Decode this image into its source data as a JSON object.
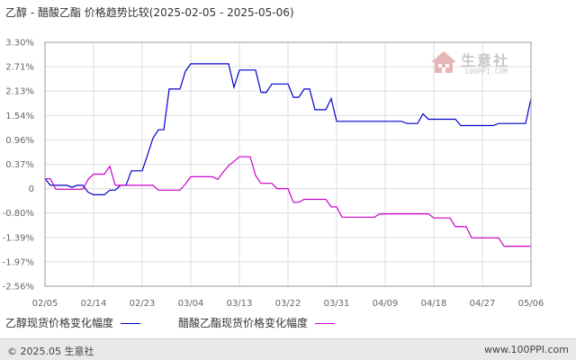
{
  "chart_data": {
    "type": "line",
    "title": "乙醇 - 醋酸乙酯 价格趋势比较(2025-02-05 - 2025-05-06)",
    "xlabel": "",
    "ylabel": "",
    "x_ticks": [
      "02/05",
      "02/14",
      "02/23",
      "03/04",
      "03/13",
      "03/22",
      "03/31",
      "04/09",
      "04/18",
      "04/27",
      "05/06"
    ],
    "y_ticks": [
      "3.30%",
      "2.71%",
      "2.13%",
      "1.54%",
      "0.96%",
      "0.37%",
      "0",
      "-0.80%",
      "-1.39%",
      "-1.97%",
      "-2.56%"
    ],
    "x_range": [
      0,
      90
    ],
    "ylim": [
      -2.56,
      3.3
    ],
    "grid": true,
    "legend_position": "bottom",
    "series": [
      {
        "name": "乙醇现货价格变化幅度",
        "color": "#0000cc",
        "points": [
          [
            0,
            0.15
          ],
          [
            1,
            0.05
          ],
          [
            2,
            0.05
          ],
          [
            3,
            0.05
          ],
          [
            4,
            0.05
          ],
          [
            5,
            0.02
          ],
          [
            6,
            0.05
          ],
          [
            7,
            0.05
          ],
          [
            8,
            -0.12
          ],
          [
            9,
            -0.2
          ],
          [
            10,
            -0.2
          ],
          [
            11,
            -0.2
          ],
          [
            12,
            -0.05
          ],
          [
            13,
            -0.05
          ],
          [
            14,
            0.05
          ],
          [
            15,
            0.05
          ],
          [
            16,
            0.27
          ],
          [
            17,
            0.27
          ],
          [
            18,
            0.27
          ],
          [
            19,
            0.6
          ],
          [
            20,
            1.0
          ],
          [
            21,
            1.2
          ],
          [
            22,
            1.2
          ],
          [
            23,
            2.18
          ],
          [
            24,
            2.18
          ],
          [
            25,
            2.18
          ],
          [
            26,
            2.6
          ],
          [
            27,
            2.78
          ],
          [
            28,
            2.78
          ],
          [
            29,
            2.78
          ],
          [
            30,
            2.78
          ],
          [
            31,
            2.78
          ],
          [
            32,
            2.78
          ],
          [
            33,
            2.78
          ],
          [
            34,
            2.78
          ],
          [
            35,
            2.22
          ],
          [
            36,
            2.63
          ],
          [
            37,
            2.63
          ],
          [
            38,
            2.63
          ],
          [
            39,
            2.63
          ],
          [
            40,
            2.1
          ],
          [
            41,
            2.1
          ],
          [
            42,
            2.3
          ],
          [
            43,
            2.3
          ],
          [
            44,
            2.3
          ],
          [
            45,
            2.3
          ],
          [
            46,
            1.98
          ],
          [
            47,
            1.98
          ],
          [
            48,
            2.18
          ],
          [
            49,
            2.18
          ],
          [
            50,
            1.68
          ],
          [
            51,
            1.68
          ],
          [
            52,
            1.68
          ],
          [
            53,
            1.95
          ],
          [
            54,
            1.4
          ],
          [
            55,
            1.4
          ],
          [
            56,
            1.4
          ],
          [
            57,
            1.4
          ],
          [
            58,
            1.4
          ],
          [
            59,
            1.4
          ],
          [
            60,
            1.4
          ],
          [
            61,
            1.4
          ],
          [
            62,
            1.4
          ],
          [
            63,
            1.4
          ],
          [
            64,
            1.4
          ],
          [
            65,
            1.4
          ],
          [
            66,
            1.4
          ],
          [
            67,
            1.35
          ],
          [
            68,
            1.35
          ],
          [
            69,
            1.35
          ],
          [
            70,
            1.58
          ],
          [
            71,
            1.45
          ],
          [
            72,
            1.45
          ],
          [
            73,
            1.45
          ],
          [
            74,
            1.45
          ],
          [
            75,
            1.45
          ],
          [
            76,
            1.45
          ],
          [
            77,
            1.3
          ],
          [
            78,
            1.3
          ],
          [
            79,
            1.3
          ],
          [
            80,
            1.3
          ],
          [
            81,
            1.3
          ],
          [
            82,
            1.3
          ],
          [
            83,
            1.3
          ],
          [
            84,
            1.35
          ],
          [
            85,
            1.35
          ],
          [
            86,
            1.35
          ],
          [
            87,
            1.35
          ],
          [
            88,
            1.35
          ],
          [
            89,
            1.35
          ],
          [
            90,
            1.95
          ]
        ]
      },
      {
        "name": "醋酸乙酯现货价格变化幅度",
        "color": "#cc00cc",
        "points": [
          [
            0,
            0.15
          ],
          [
            1,
            0.15
          ],
          [
            2,
            -0.02
          ],
          [
            3,
            -0.02
          ],
          [
            4,
            -0.02
          ],
          [
            5,
            -0.02
          ],
          [
            6,
            -0.02
          ],
          [
            7,
            -0.02
          ],
          [
            8,
            0.14
          ],
          [
            9,
            0.22
          ],
          [
            10,
            0.22
          ],
          [
            11,
            0.22
          ],
          [
            12,
            0.34
          ],
          [
            13,
            0.05
          ],
          [
            14,
            0.05
          ],
          [
            15,
            0.05
          ],
          [
            16,
            0.05
          ],
          [
            17,
            0.05
          ],
          [
            18,
            0.05
          ],
          [
            19,
            0.05
          ],
          [
            20,
            0.05
          ],
          [
            21,
            -0.05
          ],
          [
            22,
            -0.05
          ],
          [
            23,
            -0.05
          ],
          [
            24,
            -0.05
          ],
          [
            25,
            -0.05
          ],
          [
            26,
            0.07
          ],
          [
            27,
            0.18
          ],
          [
            28,
            0.18
          ],
          [
            29,
            0.18
          ],
          [
            30,
            0.18
          ],
          [
            31,
            0.18
          ],
          [
            32,
            0.14
          ],
          [
            33,
            0.25
          ],
          [
            34,
            0.35
          ],
          [
            35,
            0.44
          ],
          [
            36,
            0.55
          ],
          [
            37,
            0.55
          ],
          [
            38,
            0.55
          ],
          [
            39,
            0.2
          ],
          [
            40,
            0.08
          ],
          [
            41,
            0.08
          ],
          [
            42,
            0.08
          ],
          [
            43,
            0.0
          ],
          [
            44,
            0.0
          ],
          [
            45,
            0.0
          ],
          [
            46,
            -0.45
          ],
          [
            47,
            -0.45
          ],
          [
            48,
            -0.35
          ],
          [
            49,
            -0.35
          ],
          [
            50,
            -0.35
          ],
          [
            51,
            -0.35
          ],
          [
            52,
            -0.35
          ],
          [
            53,
            -0.6
          ],
          [
            54,
            -0.6
          ],
          [
            55,
            -0.9
          ],
          [
            56,
            -0.9
          ],
          [
            57,
            -0.9
          ],
          [
            58,
            -0.9
          ],
          [
            59,
            -0.9
          ],
          [
            60,
            -0.9
          ],
          [
            61,
            -0.9
          ],
          [
            62,
            -0.82
          ],
          [
            63,
            -0.82
          ],
          [
            64,
            -0.82
          ],
          [
            65,
            -0.82
          ],
          [
            66,
            -0.82
          ],
          [
            67,
            -0.82
          ],
          [
            68,
            -0.82
          ],
          [
            69,
            -0.82
          ],
          [
            70,
            -0.82
          ],
          [
            71,
            -0.82
          ],
          [
            72,
            -0.92
          ],
          [
            73,
            -0.92
          ],
          [
            74,
            -0.92
          ],
          [
            75,
            -0.92
          ],
          [
            76,
            -1.13
          ],
          [
            77,
            -1.13
          ],
          [
            78,
            -1.13
          ],
          [
            79,
            -1.4
          ],
          [
            80,
            -1.4
          ],
          [
            81,
            -1.4
          ],
          [
            82,
            -1.4
          ],
          [
            83,
            -1.4
          ],
          [
            84,
            -1.4
          ],
          [
            85,
            -1.6
          ],
          [
            86,
            -1.6
          ],
          [
            87,
            -1.6
          ],
          [
            88,
            -1.6
          ],
          [
            89,
            -1.6
          ],
          [
            90,
            -1.6
          ]
        ]
      }
    ]
  },
  "logo": {
    "brand": "生意社",
    "url": "100PPI.COM"
  },
  "footer": {
    "copyright": "© 2025.05 生意社",
    "site": "www.100PPI.com"
  }
}
